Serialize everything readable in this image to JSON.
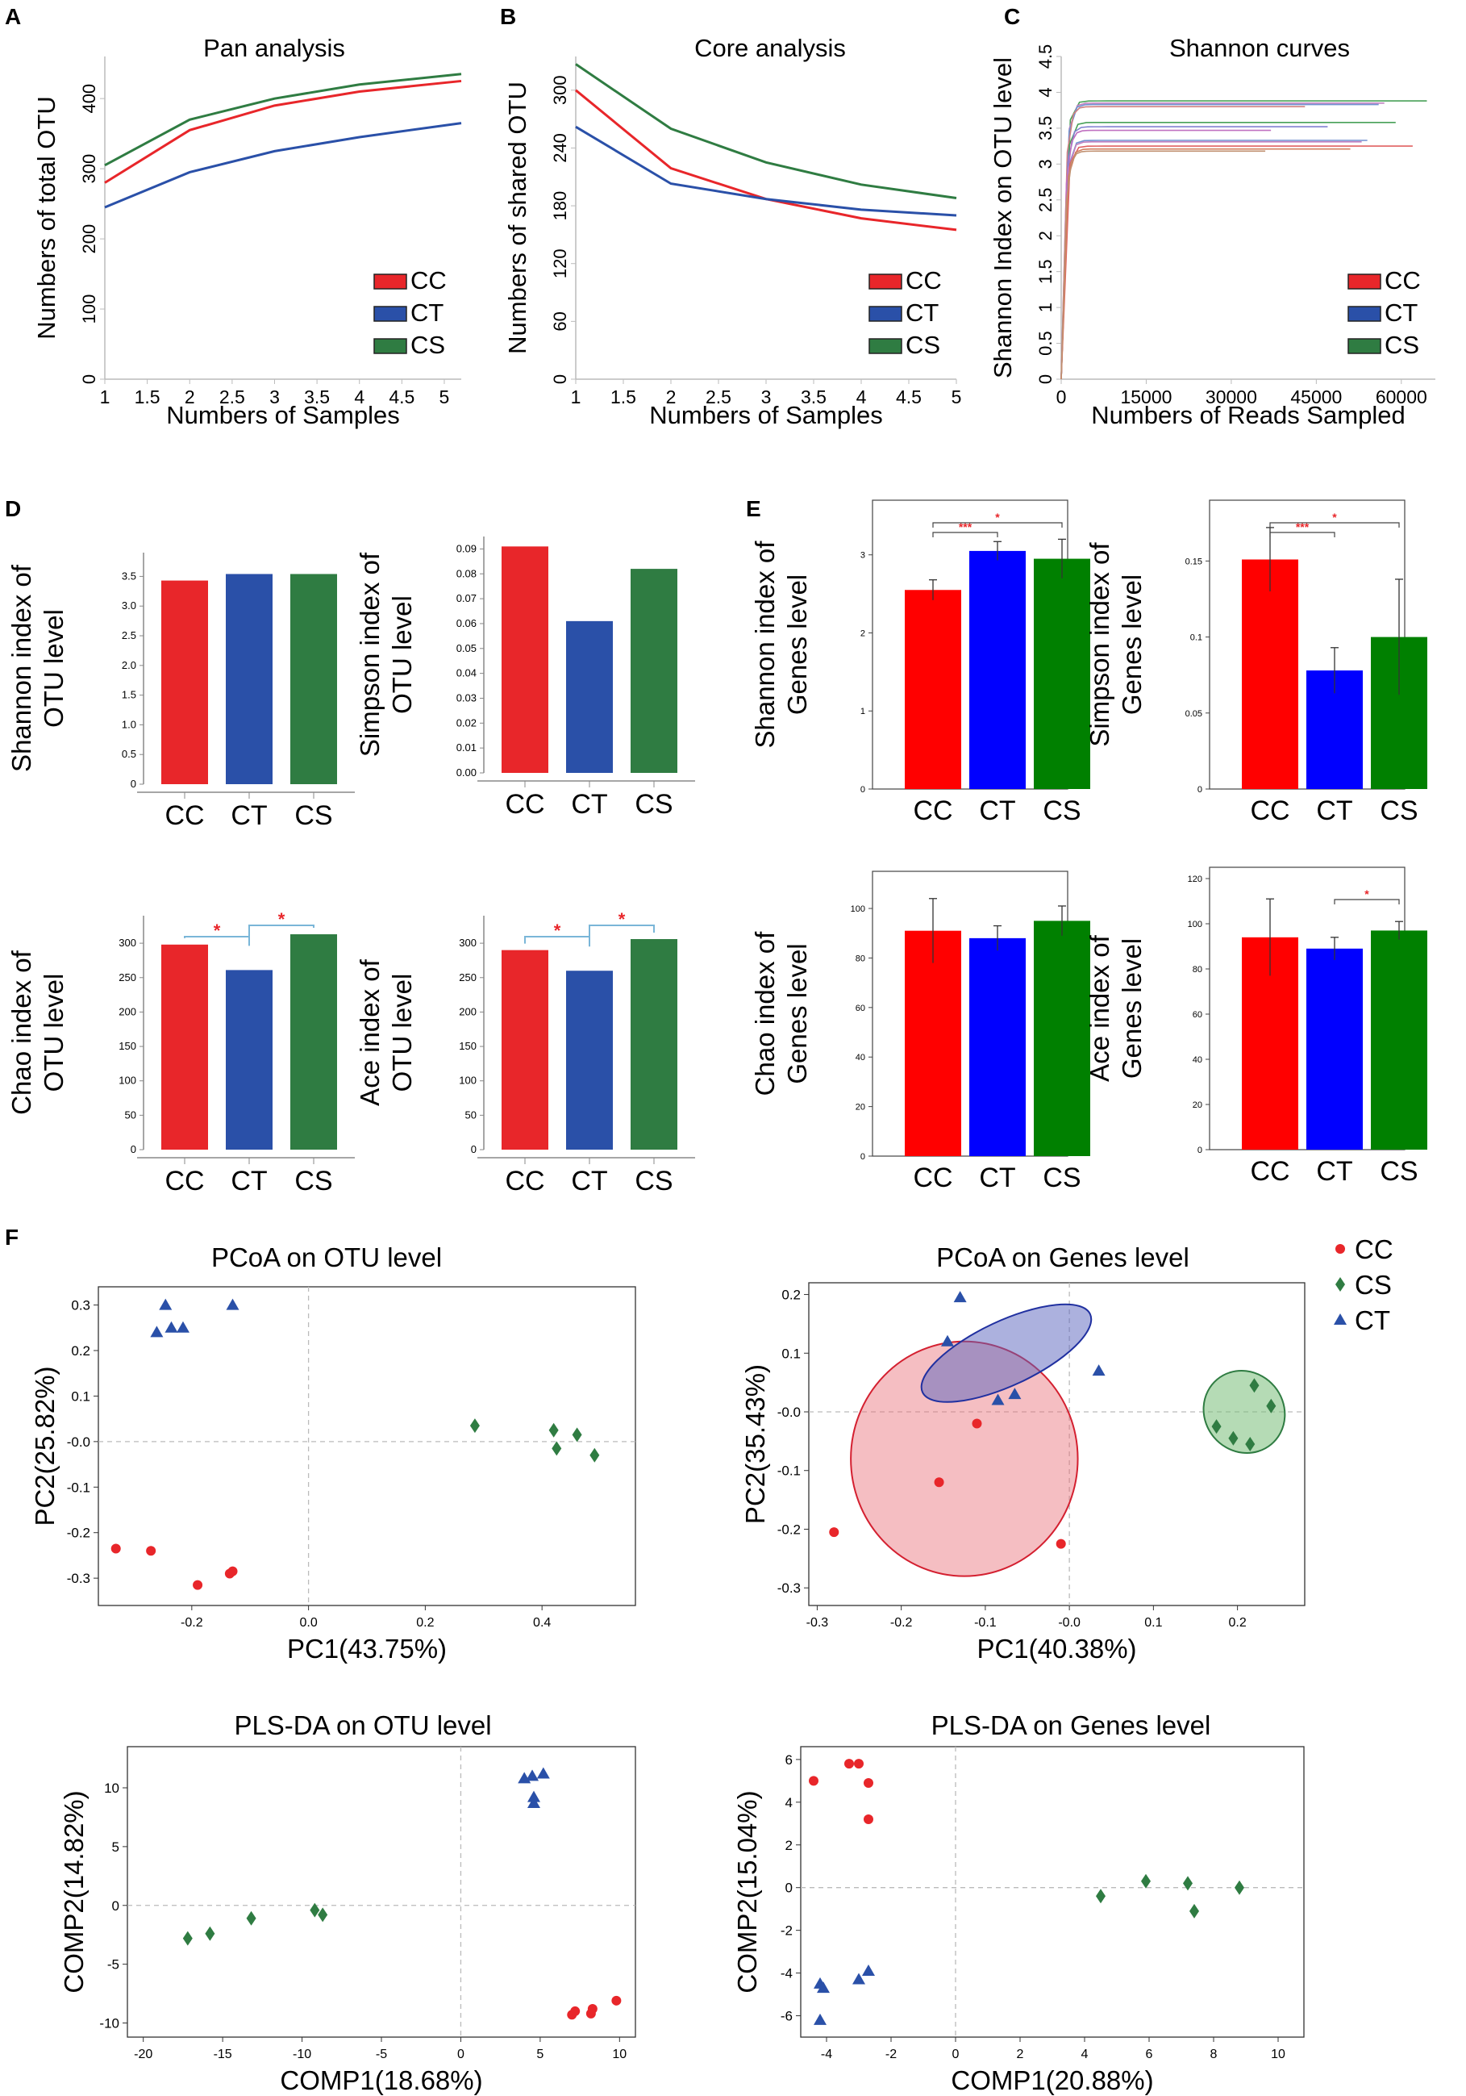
{
  "colors": {
    "CC": "#e8262a",
    "CT": "#2a50a8",
    "CS": "#2f7c42",
    "CC_e": "#ff0000",
    "CT_e": "#0000ff",
    "CS_e": "#008000",
    "sig": "#e8262a",
    "bracket": "#7ab6d8",
    "axis": "#888888"
  },
  "panels": {
    "A": "A",
    "B": "B",
    "C": "C",
    "D": "D",
    "E": "E",
    "F": "F"
  },
  "chart_data": [
    {
      "id": "pan",
      "type": "line",
      "title": "Pan analysis",
      "xlabel": "Numbers of Samples",
      "ylabel": "Numbers of total OTU",
      "xlim": [
        1,
        5.2
      ],
      "ylim": [
        0,
        460
      ],
      "xticks": [
        1,
        1.5,
        2,
        2.5,
        3,
        3.5,
        4,
        4.5,
        5
      ],
      "yticks": [
        0,
        100,
        200,
        300,
        400
      ],
      "legend": [
        "CC",
        "CT",
        "CS"
      ],
      "series": [
        {
          "name": "CC",
          "x": [
            1,
            2,
            3,
            4,
            5.2
          ],
          "values": [
            280,
            355,
            390,
            410,
            425
          ]
        },
        {
          "name": "CT",
          "x": [
            1,
            2,
            3,
            4,
            5.2
          ],
          "values": [
            245,
            295,
            325,
            345,
            365
          ]
        },
        {
          "name": "CS",
          "x": [
            1,
            2,
            3,
            4,
            5.2
          ],
          "values": [
            305,
            370,
            400,
            420,
            435
          ]
        }
      ]
    },
    {
      "id": "core",
      "type": "line",
      "title": "Core analysis",
      "xlabel": "Numbers of Samples",
      "ylabel": "Numbers of shared OTU",
      "xlim": [
        1,
        5
      ],
      "ylim": [
        0,
        335
      ],
      "xticks": [
        1,
        1.5,
        2,
        2.5,
        3,
        3.5,
        4,
        4.5,
        5
      ],
      "yticks": [
        0,
        60,
        120,
        180,
        240,
        300
      ],
      "legend": [
        "CC",
        "CT",
        "CS"
      ],
      "series": [
        {
          "name": "CC",
          "x": [
            1,
            2,
            3,
            4,
            5
          ],
          "values": [
            300,
            219,
            187,
            167,
            155
          ]
        },
        {
          "name": "CT",
          "x": [
            1,
            2,
            3,
            4,
            5
          ],
          "values": [
            262,
            203,
            187,
            176,
            170
          ]
        },
        {
          "name": "CS",
          "x": [
            1,
            2,
            3,
            4,
            5
          ],
          "values": [
            327,
            260,
            225,
            202,
            188
          ]
        }
      ]
    },
    {
      "id": "shannon_curves",
      "type": "line",
      "title": "Shannon curves",
      "xlabel": "Numbers of Reads Sampled",
      "ylabel": "Shannon Index on OTU level",
      "xlim": [
        0,
        66000
      ],
      "ylim": [
        0,
        4.5
      ],
      "xticks": [
        0,
        15000,
        30000,
        45000,
        60000
      ],
      "yticks": [
        0,
        0.5,
        1,
        1.5,
        2,
        2.5,
        3,
        3.5,
        4,
        4.5
      ],
      "legend": [
        "CC",
        "CT",
        "CS"
      ],
      "curves": [
        {
          "end": 64500,
          "plateau": 3.88,
          "color": "#48a058"
        },
        {
          "end": 57000,
          "plateau": 3.85,
          "color": "#c080c0"
        },
        {
          "end": 56000,
          "plateau": 3.83,
          "color": "#7090d0"
        },
        {
          "end": 43000,
          "plateau": 3.8,
          "color": "#d08080"
        },
        {
          "end": 59000,
          "plateau": 3.58,
          "color": "#48a058"
        },
        {
          "end": 47000,
          "plateau": 3.52,
          "color": "#8080d0"
        },
        {
          "end": 37000,
          "plateau": 3.47,
          "color": "#c070c0"
        },
        {
          "end": 54000,
          "plateau": 3.33,
          "color": "#7090d0"
        },
        {
          "end": 53000,
          "plateau": 3.31,
          "color": "#c080c0"
        },
        {
          "end": 62000,
          "plateau": 3.25,
          "color": "#e06060"
        },
        {
          "end": 51000,
          "plateau": 3.21,
          "color": "#d08060"
        },
        {
          "end": 36000,
          "plateau": 3.18,
          "color": "#c09070"
        }
      ]
    },
    {
      "id": "d_shannon",
      "type": "bar",
      "ylabel": [
        "Shannon index of",
        "OTU level"
      ],
      "categories": [
        "CC",
        "CT",
        "CS"
      ],
      "values": [
        3.43,
        3.54,
        3.54
      ],
      "ylim": [
        0,
        3.9
      ],
      "yticks": [
        "0",
        "0.5",
        "1.0",
        "1.5",
        "2.0",
        "2.5",
        "3.0",
        "3.5"
      ],
      "style": "D",
      "sig": []
    },
    {
      "id": "d_simpson",
      "type": "bar",
      "ylabel": [
        "Simpson index of",
        "OTU level"
      ],
      "categories": [
        "CC",
        "CT",
        "CS"
      ],
      "values": [
        0.091,
        0.061,
        0.082
      ],
      "ylim": [
        0,
        0.095
      ],
      "yticks": [
        "0.00",
        "0.01",
        "0.02",
        "0.03",
        "0.04",
        "0.05",
        "0.06",
        "0.07",
        "0.08",
        "0.09"
      ],
      "style": "D",
      "sig": []
    },
    {
      "id": "d_chao",
      "type": "bar",
      "ylabel": [
        "Chao index of",
        "OTU level"
      ],
      "categories": [
        "CC",
        "CT",
        "CS"
      ],
      "values": [
        298,
        261,
        313
      ],
      "ylim": [
        0,
        340
      ],
      "yticks": [
        "0",
        "50",
        "100",
        "150",
        "200",
        "250",
        "300"
      ],
      "style": "D",
      "sig": [
        {
          "from": 0,
          "to": 1,
          "label": "*"
        },
        {
          "from": 1,
          "to": 2,
          "label": "*"
        }
      ]
    },
    {
      "id": "d_ace",
      "type": "bar",
      "ylabel": [
        "Ace index of",
        "OTU level"
      ],
      "categories": [
        "CC",
        "CT",
        "CS"
      ],
      "values": [
        290,
        260,
        306
      ],
      "ylim": [
        0,
        340
      ],
      "yticks": [
        "0",
        "50",
        "100",
        "150",
        "200",
        "250",
        "300"
      ],
      "style": "D",
      "sig": [
        {
          "from": 0,
          "to": 1,
          "label": "*"
        },
        {
          "from": 1,
          "to": 2,
          "label": "*"
        }
      ]
    },
    {
      "id": "e_shannon",
      "type": "bar",
      "ylabel": [
        "Shannon index of",
        "Genes level"
      ],
      "categories": [
        "CC",
        "CT",
        "CS"
      ],
      "values": [
        2.55,
        3.05,
        2.95
      ],
      "errors": [
        0.13,
        0.12,
        0.25
      ],
      "ylim": [
        0,
        3.7
      ],
      "yticks": [
        "0",
        "1",
        "2",
        "3"
      ],
      "style": "E",
      "sig": [
        {
          "from": 0,
          "to": 1,
          "label": "***"
        },
        {
          "from": 0,
          "to": 2,
          "label": "*"
        }
      ]
    },
    {
      "id": "e_simpson",
      "type": "bar",
      "ylabel": [
        "Simpson index of",
        "Genes level"
      ],
      "categories": [
        "CC",
        "CT",
        "CS"
      ],
      "values": [
        0.151,
        0.078,
        0.1
      ],
      "errors": [
        0.021,
        0.015,
        0.038
      ],
      "ylim": [
        0,
        0.19
      ],
      "yticks": [
        "0",
        "0.05",
        "0.1",
        "0.15"
      ],
      "style": "E",
      "sig": [
        {
          "from": 0,
          "to": 1,
          "label": "***"
        },
        {
          "from": 0,
          "to": 2,
          "label": "*"
        }
      ]
    },
    {
      "id": "e_chao",
      "type": "bar",
      "ylabel": [
        "Chao index of",
        "Genes level"
      ],
      "categories": [
        "CC",
        "CT",
        "CS"
      ],
      "values": [
        91,
        88,
        95
      ],
      "errors": [
        13,
        5,
        6
      ],
      "ylim": [
        0,
        115
      ],
      "yticks": [
        "0",
        "20",
        "40",
        "60",
        "80",
        "100"
      ],
      "style": "E",
      "sig": []
    },
    {
      "id": "e_ace",
      "type": "bar",
      "ylabel": [
        "Ace index of",
        "Genes level"
      ],
      "categories": [
        "CC",
        "CT",
        "CS"
      ],
      "values": [
        94,
        89,
        97
      ],
      "errors": [
        17,
        5,
        4
      ],
      "ylim": [
        0,
        125
      ],
      "yticks": [
        "0",
        "20",
        "40",
        "60",
        "80",
        "100",
        "120"
      ],
      "style": "E",
      "sig": [
        {
          "from": 1,
          "to": 2,
          "label": "*"
        }
      ]
    },
    {
      "id": "pcoa_otu",
      "type": "scatter",
      "title": "PCoA on OTU level",
      "xlabel": "PC1(43.75%)",
      "ylabel": "PC2(25.82%)",
      "xlim": [
        -0.36,
        0.56
      ],
      "ylim": [
        -0.36,
        0.34
      ],
      "xticks": [
        "-0.2",
        "0.0",
        "0.2",
        "0.4"
      ],
      "xtickvals": [
        -0.2,
        0,
        0.2,
        0.4
      ],
      "yticks": [
        "-0.3",
        "-0.2",
        "-0.1",
        "-0.0",
        "0.1",
        "0.2",
        "0.3"
      ],
      "ytickvals": [
        -0.3,
        -0.2,
        -0.1,
        0,
        0.1,
        0.2,
        0.3
      ],
      "series": [
        {
          "name": "CC",
          "marker": "circle",
          "points": [
            [
              -0.33,
              -0.235
            ],
            [
              -0.27,
              -0.24
            ],
            [
              -0.19,
              -0.315
            ],
            [
              -0.135,
              -0.29
            ],
            [
              -0.13,
              -0.285
            ]
          ]
        },
        {
          "name": "CT",
          "marker": "triangle",
          "points": [
            [
              -0.26,
              0.24
            ],
            [
              -0.245,
              0.3
            ],
            [
              -0.235,
              0.25
            ],
            [
              -0.215,
              0.25
            ],
            [
              -0.13,
              0.3
            ]
          ]
        },
        {
          "name": "CS",
          "marker": "diamond",
          "points": [
            [
              0.285,
              0.035
            ],
            [
              0.42,
              0.025
            ],
            [
              0.425,
              -0.015
            ],
            [
              0.46,
              0.015
            ],
            [
              0.49,
              -0.03
            ]
          ]
        }
      ]
    },
    {
      "id": "pcoa_genes",
      "type": "scatter",
      "title": "PCoA on Genes level",
      "xlabel": "PC1(40.38%)",
      "ylabel": "PC2(35.43%)",
      "xlim": [
        -0.31,
        0.28
      ],
      "ylim": [
        -0.33,
        0.22
      ],
      "xticks": [
        "-0.3",
        "-0.2",
        "-0.1",
        "-0.0",
        "0.1",
        "0.2"
      ],
      "xtickvals": [
        -0.3,
        -0.2,
        -0.1,
        0,
        0.1,
        0.2
      ],
      "yticks": [
        "-0.3",
        "-0.2",
        "-0.1",
        "-0.0",
        "0.1",
        "0.2"
      ],
      "ytickvals": [
        -0.3,
        -0.2,
        -0.1,
        0,
        0.1,
        0.2
      ],
      "legend": [
        "CC",
        "CS",
        "CT"
      ],
      "series": [
        {
          "name": "CC",
          "marker": "circle",
          "points": [
            [
              -0.28,
              -0.205
            ],
            [
              -0.155,
              -0.12
            ],
            [
              -0.11,
              -0.02
            ],
            [
              -0.01,
              -0.225
            ]
          ]
        },
        {
          "name": "CT",
          "marker": "triangle",
          "points": [
            [
              -0.13,
              0.195
            ],
            [
              -0.145,
              0.12
            ],
            [
              -0.085,
              0.02
            ],
            [
              -0.065,
              0.03
            ],
            [
              0.035,
              0.07
            ]
          ]
        },
        {
          "name": "CS",
          "marker": "diamond",
          "points": [
            [
              0.175,
              -0.025
            ],
            [
              0.195,
              -0.045
            ],
            [
              0.215,
              -0.055
            ],
            [
              0.22,
              0.045
            ],
            [
              0.24,
              0.01
            ]
          ]
        }
      ],
      "ellipses": [
        {
          "name": "CC",
          "cx": -0.125,
          "cy": -0.08,
          "rx": 0.135,
          "ry": 0.2,
          "angle": 0
        },
        {
          "name": "CT",
          "cx": -0.075,
          "cy": 0.1,
          "rx": 0.11,
          "ry": 0.055,
          "angle": 25
        },
        {
          "name": "CS",
          "cx": 0.208,
          "cy": 0.0,
          "rx": 0.047,
          "ry": 0.072,
          "angle": 40
        }
      ]
    },
    {
      "id": "plsda_otu",
      "type": "scatter",
      "title": "PLS-DA on OTU level",
      "xlabel": "COMP1(18.68%)",
      "ylabel": "COMP2(14.82%)",
      "xlim": [
        -21,
        11
      ],
      "ylim": [
        -11.2,
        13.5
      ],
      "xticks": [
        "-20",
        "-15",
        "-10",
        "-5",
        "0",
        "5",
        "10"
      ],
      "xtickvals": [
        -20,
        -15,
        -10,
        -5,
        0,
        5,
        10
      ],
      "yticks": [
        "-10",
        "-5",
        "0",
        "5",
        "10"
      ],
      "ytickvals": [
        -10,
        -5,
        0,
        5,
        10
      ],
      "series": [
        {
          "name": "CC",
          "marker": "circle",
          "points": [
            [
              7,
              -9.3
            ],
            [
              7.2,
              -9.0
            ],
            [
              8.2,
              -9.2
            ],
            [
              8.3,
              -8.8
            ],
            [
              9.8,
              -8.1
            ]
          ]
        },
        {
          "name": "CT",
          "marker": "triangle",
          "points": [
            [
              4.0,
              10.8
            ],
            [
              4.5,
              11.0
            ],
            [
              4.6,
              9.2
            ],
            [
              4.6,
              8.7
            ],
            [
              5.2,
              11.2
            ]
          ]
        },
        {
          "name": "CS",
          "marker": "diamond",
          "points": [
            [
              -17.2,
              -2.8
            ],
            [
              -15.8,
              -2.4
            ],
            [
              -13.2,
              -1.1
            ],
            [
              -9.2,
              -0.4
            ],
            [
              -8.7,
              -0.8
            ]
          ]
        }
      ]
    },
    {
      "id": "plsda_genes",
      "type": "scatter",
      "title": "PLS-DA on Genes level",
      "xlabel": "COMP1(20.88%)",
      "ylabel": "COMP2(15.04%)",
      "xlim": [
        -4.8,
        10.8
      ],
      "ylim": [
        -7.0,
        6.6
      ],
      "xticks": [
        "-4",
        "-2",
        "0",
        "2",
        "4",
        "6",
        "8",
        "10"
      ],
      "xtickvals": [
        -4,
        -2,
        0,
        2,
        4,
        6,
        8,
        10
      ],
      "yticks": [
        "-6",
        "-4",
        "-2",
        "0",
        "2",
        "4",
        "6"
      ],
      "ytickvals": [
        -6,
        -4,
        -2,
        0,
        2,
        4,
        6
      ],
      "series": [
        {
          "name": "CC",
          "marker": "circle",
          "points": [
            [
              -4.4,
              5.0
            ],
            [
              -3.3,
              5.8
            ],
            [
              -3.0,
              5.8
            ],
            [
              -2.7,
              4.9
            ],
            [
              -2.7,
              3.2
            ]
          ]
        },
        {
          "name": "CT",
          "marker": "triangle",
          "points": [
            [
              -4.2,
              -4.5
            ],
            [
              -4.1,
              -4.7
            ],
            [
              -4.2,
              -6.2
            ],
            [
              -3.0,
              -4.3
            ],
            [
              -2.7,
              -3.9
            ]
          ]
        },
        {
          "name": "CS",
          "marker": "diamond",
          "points": [
            [
              4.5,
              -0.4
            ],
            [
              5.9,
              0.3
            ],
            [
              7.2,
              0.2
            ],
            [
              7.4,
              -1.1
            ],
            [
              8.8,
              0.0
            ]
          ]
        }
      ]
    }
  ]
}
